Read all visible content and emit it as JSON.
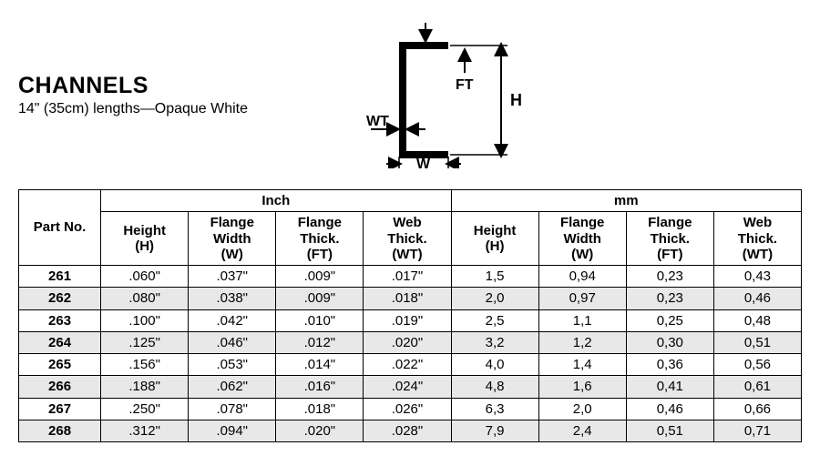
{
  "header": {
    "title": "CHANNELS",
    "subtitle": "14\" (35cm) lengths—Opaque White"
  },
  "diagram": {
    "labels": {
      "WT": "WT",
      "W": "W",
      "FT": "FT",
      "H": "H"
    },
    "stroke": "#000000",
    "stroke_width": 5,
    "arrow_stroke": 2
  },
  "table": {
    "partno_header": "Part No.",
    "unit_inch": "Inch",
    "unit_mm": "mm",
    "col_headers": {
      "height": "Height\n(H)",
      "flange_width": "Flange\nWidth\n(W)",
      "flange_thick": "Flange\nThick.\n(FT)",
      "web_thick": "Web\nThick.\n(WT)"
    },
    "rows": [
      {
        "part": "261",
        "inch": [
          ".060\"",
          ".037\"",
          ".009\"",
          ".017\""
        ],
        "mm": [
          "1,5",
          "0,94",
          "0,23",
          "0,43"
        ]
      },
      {
        "part": "262",
        "inch": [
          ".080\"",
          ".038\"",
          ".009\"",
          ".018\""
        ],
        "mm": [
          "2,0",
          "0,97",
          "0,23",
          "0,46"
        ]
      },
      {
        "part": "263",
        "inch": [
          ".100\"",
          ".042\"",
          ".010\"",
          ".019\""
        ],
        "mm": [
          "2,5",
          "1,1",
          "0,25",
          "0,48"
        ]
      },
      {
        "part": "264",
        "inch": [
          ".125\"",
          ".046\"",
          ".012\"",
          ".020\""
        ],
        "mm": [
          "3,2",
          "1,2",
          "0,30",
          "0,51"
        ]
      },
      {
        "part": "265",
        "inch": [
          ".156\"",
          ".053\"",
          ".014\"",
          ".022\""
        ],
        "mm": [
          "4,0",
          "1,4",
          "0,36",
          "0,56"
        ]
      },
      {
        "part": "266",
        "inch": [
          ".188\"",
          ".062\"",
          ".016\"",
          ".024\""
        ],
        "mm": [
          "4,8",
          "1,6",
          "0,41",
          "0,61"
        ]
      },
      {
        "part": "267",
        "inch": [
          ".250\"",
          ".078\"",
          ".018\"",
          ".026\""
        ],
        "mm": [
          "6,3",
          "2,0",
          "0,46",
          "0,66"
        ]
      },
      {
        "part": "268",
        "inch": [
          ".312\"",
          ".094\"",
          ".020\"",
          ".028\""
        ],
        "mm": [
          "7,9",
          "2,4",
          "0,51",
          "0,71"
        ]
      }
    ],
    "shade_color": "#e8e8e8",
    "border_color": "#000000"
  }
}
